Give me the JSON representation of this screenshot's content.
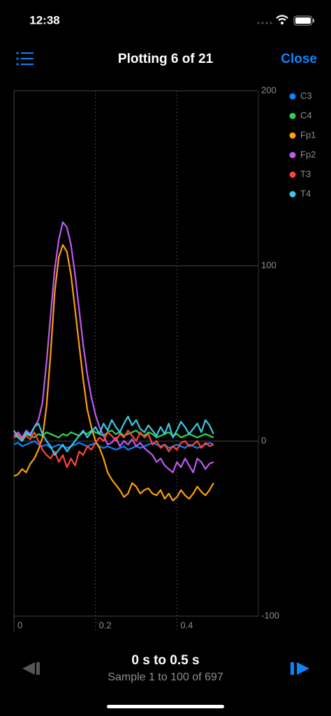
{
  "status": {
    "time": "12:38"
  },
  "nav": {
    "title": "Plotting 6 of 21",
    "close": "Close"
  },
  "chart_data": {
    "type": "line",
    "x": [
      0,
      0.01,
      0.02,
      0.03,
      0.04,
      0.05,
      0.06,
      0.07,
      0.08,
      0.09,
      0.1,
      0.11,
      0.12,
      0.13,
      0.14,
      0.15,
      0.16,
      0.17,
      0.18,
      0.19,
      0.2,
      0.21,
      0.22,
      0.23,
      0.24,
      0.25,
      0.26,
      0.27,
      0.28,
      0.29,
      0.3,
      0.31,
      0.32,
      0.33,
      0.34,
      0.35,
      0.36,
      0.37,
      0.38,
      0.39,
      0.4,
      0.41,
      0.42,
      0.43,
      0.44,
      0.45,
      0.46,
      0.47,
      0.48,
      0.49
    ],
    "xlim": [
      0,
      0.6
    ],
    "xticks": [
      0,
      0.2,
      0.4
    ],
    "ylim": [
      -100,
      200
    ],
    "yticks": [
      -100,
      0,
      100,
      200
    ],
    "grid": true,
    "legend": "top-right",
    "series": [
      {
        "name": "C3",
        "color": "#0a84ff",
        "values": [
          -2,
          -1,
          -3,
          -2,
          -1,
          0,
          -2,
          -3,
          -2,
          -4,
          -3,
          -2,
          -3,
          -4,
          -3,
          -2,
          -1,
          -2,
          -3,
          -2,
          -1,
          -3,
          -4,
          -3,
          -4,
          -5,
          -4,
          -3,
          -5,
          -4,
          -3,
          -4,
          -3,
          -2,
          -1,
          -2,
          -3,
          -2,
          -4,
          -3,
          -2,
          -3,
          -4,
          -2,
          -3,
          -4,
          -3,
          -2,
          -1,
          -2
        ]
      },
      {
        "name": "C4",
        "color": "#30d158",
        "values": [
          2,
          3,
          1,
          4,
          3,
          2,
          4,
          3,
          5,
          4,
          3,
          2,
          4,
          3,
          5,
          4,
          3,
          5,
          4,
          6,
          5,
          4,
          3,
          5,
          6,
          4,
          5,
          3,
          4,
          5,
          6,
          4,
          3,
          5,
          4,
          2,
          3,
          4,
          5,
          3,
          4,
          2,
          3,
          4,
          3,
          2,
          3,
          4,
          3,
          2
        ]
      },
      {
        "name": "Fp1",
        "color": "#ff9f0a",
        "values": [
          -20,
          -19,
          -16,
          -18,
          -13,
          -10,
          -5,
          2,
          20,
          50,
          85,
          105,
          112,
          108,
          95,
          75,
          55,
          35,
          18,
          8,
          0,
          -4,
          -10,
          -18,
          -22,
          -25,
          -28,
          -32,
          -30,
          -24,
          -26,
          -30,
          -28,
          -27,
          -30,
          -31,
          -28,
          -33,
          -30,
          -34,
          -32,
          -28,
          -31,
          -33,
          -30,
          -26,
          -29,
          -31,
          -28,
          -24
        ]
      },
      {
        "name": "Fp2",
        "color": "#bf5af2",
        "values": [
          3,
          5,
          2,
          6,
          4,
          8,
          12,
          22,
          45,
          72,
          98,
          115,
          125,
          122,
          112,
          95,
          75,
          55,
          38,
          25,
          15,
          8,
          3,
          -2,
          -1,
          2,
          -3,
          0,
          -2,
          1,
          -3,
          -1,
          -4,
          -6,
          -8,
          -12,
          -10,
          -14,
          -16,
          -18,
          -12,
          -15,
          -10,
          -14,
          -18,
          -10,
          -12,
          -16,
          -13,
          -12
        ]
      },
      {
        "name": "T3",
        "color": "#ff453a",
        "values": [
          2,
          4,
          0,
          3,
          1,
          5,
          0,
          -5,
          -8,
          -10,
          -6,
          -12,
          -8,
          -15,
          -10,
          -14,
          -6,
          -8,
          -3,
          -5,
          -1,
          2,
          0,
          5,
          3,
          0,
          4,
          2,
          6,
          3,
          0,
          5,
          2,
          4,
          -2,
          0,
          -4,
          -2,
          -6,
          -3,
          -5,
          -1,
          0,
          -3,
          -2,
          0,
          -4,
          -1,
          -3,
          -2
        ]
      },
      {
        "name": "T4",
        "color": "#40c8e0",
        "values": [
          6,
          2,
          0,
          5,
          3,
          8,
          10,
          4,
          0,
          -3,
          -8,
          -5,
          -2,
          -6,
          -3,
          0,
          3,
          6,
          2,
          5,
          8,
          4,
          10,
          6,
          12,
          8,
          5,
          10,
          14,
          9,
          12,
          7,
          5,
          9,
          6,
          3,
          8,
          4,
          10,
          2,
          6,
          11,
          8,
          4,
          7,
          10,
          5,
          12,
          9,
          4
        ]
      }
    ]
  },
  "footer": {
    "range": "0 s to 0.5 s",
    "sample": "Sample 1 to 100 of 697"
  }
}
